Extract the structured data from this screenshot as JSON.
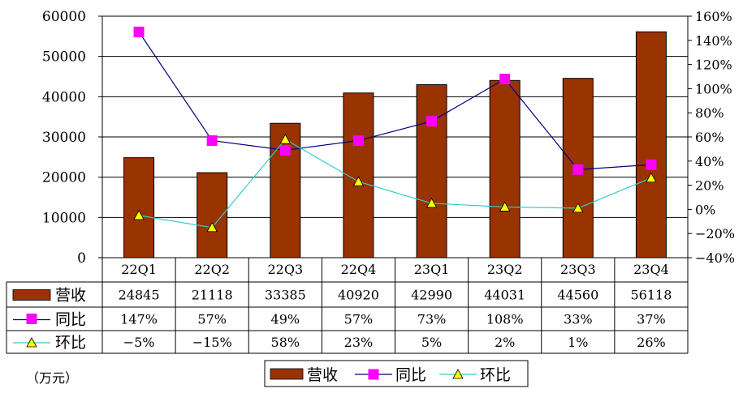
{
  "chart_data": {
    "type": "bar",
    "categories": [
      "22Q1",
      "22Q2",
      "22Q3",
      "22Q4",
      "23Q1",
      "23Q2",
      "23Q3",
      "23Q4"
    ],
    "series": [
      {
        "name": "营收",
        "type": "bar",
        "axis": "left",
        "color": "#993300",
        "values": [
          24845,
          21118,
          33385,
          40920,
          42990,
          44031,
          44560,
          56118
        ],
        "labels": [
          "24845",
          "21118",
          "33385",
          "40920",
          "42990",
          "44031",
          "44560",
          "56118"
        ]
      },
      {
        "name": "同比",
        "type": "line",
        "axis": "right",
        "color": "#000080",
        "marker": "square",
        "marker_color": "#ff00ff",
        "values": [
          147,
          57,
          49,
          57,
          73,
          108,
          33,
          37
        ],
        "labels": [
          "147%",
          "57%",
          "49%",
          "57%",
          "73%",
          "108%",
          "33%",
          "37%"
        ]
      },
      {
        "name": "环比",
        "type": "line",
        "axis": "right",
        "color": "#33cccc",
        "marker": "triangle",
        "marker_color": "#ffff00",
        "values": [
          -5,
          -15,
          58,
          23,
          5,
          2,
          1,
          26
        ],
        "labels": [
          "−5%",
          "−15%",
          "58%",
          "23%",
          "5%",
          "2%",
          "1%",
          "26%"
        ]
      }
    ],
    "y_left": {
      "range": [
        0,
        60000
      ],
      "ticks": [
        "0",
        "10000",
        "20000",
        "30000",
        "40000",
        "50000",
        "60000"
      ]
    },
    "y_right": {
      "range": [
        -40,
        160
      ],
      "ticks": [
        "−40%",
        "−20%",
        "0%",
        "20%",
        "40%",
        "60%",
        "80%",
        "100%",
        "120%",
        "140%",
        "160%"
      ]
    },
    "unit_label": "（万元）",
    "legend": [
      "营收",
      "同比",
      "环比"
    ],
    "legend_placement": "bottom",
    "grid": true
  }
}
